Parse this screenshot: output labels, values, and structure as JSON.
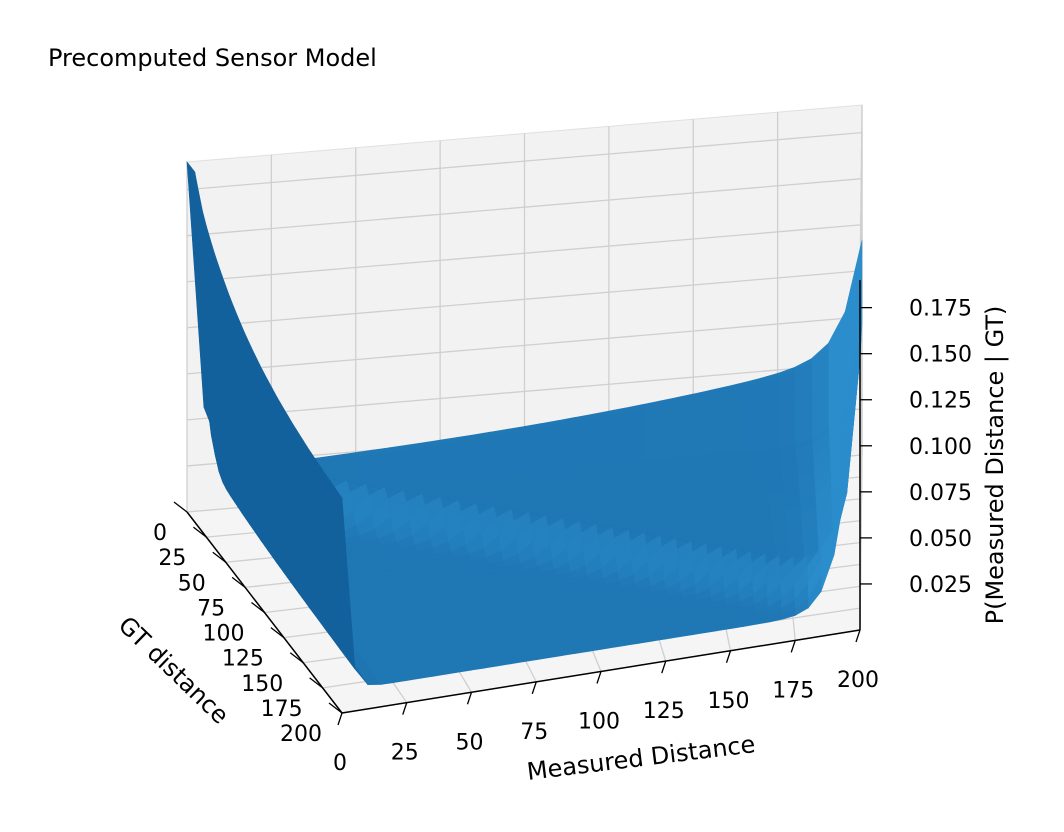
{
  "chart_data": {
    "type": "surface",
    "title": "Precomputed Sensor Model",
    "xlabel": "Measured Distance",
    "ylabel": "GT distance",
    "zlabel": "P(Measured Distance | GT)",
    "x_ticks": [
      0,
      25,
      50,
      75,
      100,
      125,
      150,
      175,
      200
    ],
    "y_ticks": [
      0,
      25,
      50,
      75,
      100,
      125,
      150,
      175,
      200
    ],
    "z_ticks": [
      "0.025",
      "0.050",
      "0.075",
      "0.100",
      "0.125",
      "0.150",
      "0.175"
    ],
    "xlim": [
      0,
      200
    ],
    "ylim": [
      0,
      200
    ],
    "zlim": [
      0,
      0.19
    ],
    "grid": true,
    "surface_color": "#1f77b4",
    "model": {
      "short_at_zero_peak": 0.185,
      "max_range_peak": 0.135,
      "far_wall_max_range": 0.125,
      "hit_peak": 0.02,
      "random_floor": 0.012
    }
  }
}
